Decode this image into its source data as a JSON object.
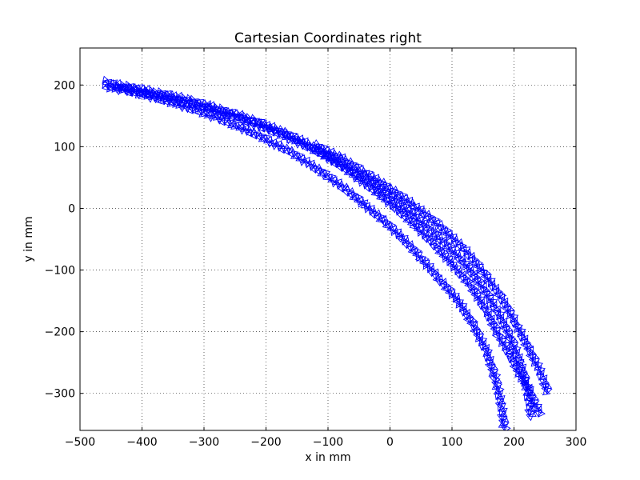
{
  "chart_data": {
    "type": "scatter",
    "title": "Cartesian Coordinates right",
    "xlabel": "x in mm",
    "ylabel": "y in mm",
    "xlim": [
      -500,
      300
    ],
    "ylim": [
      -360,
      260
    ],
    "xticks": [
      -500,
      -400,
      -300,
      -200,
      -100,
      0,
      100,
      200,
      300
    ],
    "xtick_labels": [
      "−500",
      "−400",
      "−300",
      "−200",
      "−100",
      "0",
      "100",
      "200",
      "300"
    ],
    "yticks": [
      -300,
      -200,
      -100,
      0,
      100,
      200
    ],
    "ytick_labels": [
      "−300",
      "−200",
      "−100",
      "0",
      "100",
      "200"
    ],
    "grid": true,
    "marker": "triangle",
    "color": "#0000ff",
    "series": [
      {
        "values": [
          [
            -460,
            205
          ],
          [
            -440,
            200
          ],
          [
            -410,
            195
          ],
          [
            -380,
            188
          ],
          [
            -350,
            182
          ],
          [
            -320,
            174
          ],
          [
            -290,
            165
          ],
          [
            -260,
            156
          ],
          [
            -230,
            146
          ],
          [
            -200,
            135
          ],
          [
            -170,
            122
          ],
          [
            -140,
            108
          ],
          [
            -110,
            90
          ],
          [
            -80,
            70
          ],
          [
            -50,
            48
          ],
          [
            -20,
            25
          ],
          [
            10,
            0
          ],
          [
            40,
            -27
          ],
          [
            70,
            -57
          ],
          [
            100,
            -90
          ],
          [
            130,
            -125
          ],
          [
            155,
            -165
          ],
          [
            175,
            -205
          ],
          [
            195,
            -240
          ],
          [
            210,
            -270
          ],
          [
            225,
            -295
          ],
          [
            235,
            -320
          ],
          [
            245,
            -335
          ]
        ]
      },
      {
        "values": [
          [
            -460,
            198
          ],
          [
            -430,
            192
          ],
          [
            -400,
            185
          ],
          [
            -370,
            177
          ],
          [
            -340,
            168
          ],
          [
            -310,
            158
          ],
          [
            -280,
            147
          ],
          [
            -250,
            135
          ],
          [
            -220,
            122
          ],
          [
            -190,
            107
          ],
          [
            -160,
            91
          ],
          [
            -130,
            72
          ],
          [
            -100,
            52
          ],
          [
            -70,
            30
          ],
          [
            -40,
            5
          ],
          [
            -10,
            -20
          ],
          [
            20,
            -48
          ],
          [
            50,
            -80
          ],
          [
            80,
            -115
          ],
          [
            110,
            -150
          ],
          [
            135,
            -190
          ],
          [
            155,
            -230
          ],
          [
            170,
            -275
          ],
          [
            180,
            -320
          ],
          [
            185,
            -360
          ]
        ]
      },
      {
        "values": [
          [
            -440,
            196
          ],
          [
            -400,
            188
          ],
          [
            -360,
            179
          ],
          [
            -320,
            169
          ],
          [
            -280,
            158
          ],
          [
            -240,
            145
          ],
          [
            -200,
            130
          ],
          [
            -160,
            113
          ],
          [
            -120,
            94
          ],
          [
            -80,
            72
          ],
          [
            -40,
            48
          ],
          [
            0,
            20
          ],
          [
            40,
            -12
          ],
          [
            80,
            -48
          ],
          [
            120,
            -88
          ],
          [
            150,
            -128
          ],
          [
            175,
            -170
          ],
          [
            195,
            -210
          ],
          [
            210,
            -250
          ],
          [
            220,
            -285
          ],
          [
            225,
            -320
          ],
          [
            228,
            -340
          ]
        ]
      },
      {
        "values": [
          [
            -120,
            102
          ],
          [
            -80,
            82
          ],
          [
            -40,
            58
          ],
          [
            0,
            32
          ],
          [
            40,
            4
          ],
          [
            80,
            -28
          ],
          [
            120,
            -66
          ],
          [
            150,
            -102
          ],
          [
            180,
            -145
          ],
          [
            205,
            -190
          ],
          [
            225,
            -230
          ],
          [
            240,
            -260
          ],
          [
            250,
            -285
          ],
          [
            255,
            -300
          ]
        ]
      }
    ]
  }
}
